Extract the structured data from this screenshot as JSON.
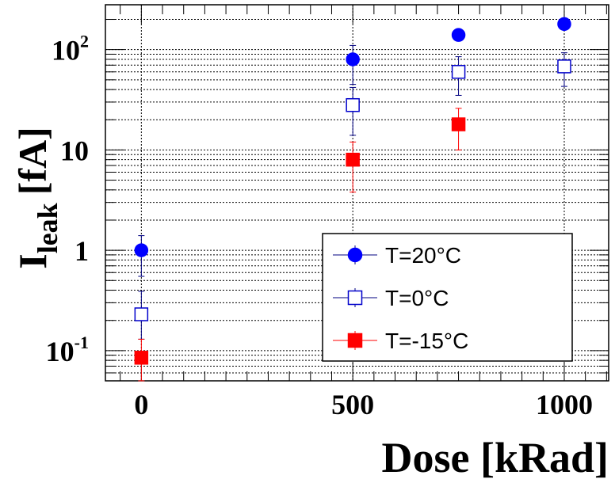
{
  "chart_data": {
    "type": "scatter",
    "title": "",
    "xlabel": "Dose [kRad]",
    "ylabel_main": "I",
    "ylabel_sub": "leak",
    "ylabel_unit": "[fA]",
    "xlim": [
      -85,
      1105
    ],
    "ylim": [
      0.05,
      280
    ],
    "yscale": "log",
    "grid": true,
    "legend_position": "bottom-right",
    "x_ticks": [
      {
        "value": 0,
        "label": "0"
      },
      {
        "value": 500,
        "label": "500"
      },
      {
        "value": 1000,
        "label": "1000"
      }
    ],
    "y_ticks": [
      {
        "value": 0.1,
        "base": "10",
        "exp": "-1"
      },
      {
        "value": 1,
        "base": "1",
        "exp": ""
      },
      {
        "value": 10,
        "base": "10",
        "exp": ""
      },
      {
        "value": 100,
        "base": "10",
        "exp": "2"
      }
    ],
    "series": [
      {
        "name": "T=20°C",
        "marker": "circle",
        "filled": true,
        "color": "#0000ff",
        "bar_color": "#000080",
        "points": [
          {
            "x": 0,
            "y": 1.0,
            "lo": 0.55,
            "hi": 1.4
          },
          {
            "x": 500,
            "y": 80,
            "lo": 45,
            "hi": 110
          },
          {
            "x": 750,
            "y": 140,
            "lo": 140,
            "hi": 140
          },
          {
            "x": 1000,
            "y": 180,
            "lo": 180,
            "hi": 180
          }
        ]
      },
      {
        "name": "T=0°C",
        "marker": "square",
        "filled": false,
        "color": "#0000cc",
        "bar_color": "#000080",
        "points": [
          {
            "x": 0,
            "y": 0.23,
            "lo": 0.13,
            "hi": 0.39
          },
          {
            "x": 500,
            "y": 28,
            "lo": 14,
            "hi": 42
          },
          {
            "x": 750,
            "y": 60,
            "lo": 35,
            "hi": 85
          },
          {
            "x": 1000,
            "y": 68,
            "lo": 43,
            "hi": 93
          }
        ]
      },
      {
        "name": "T=-15°C",
        "marker": "square",
        "filled": true,
        "color": "#ff0000",
        "bar_color": "#ff0000",
        "points": [
          {
            "x": 0,
            "y": 0.085,
            "lo": 0.05,
            "hi": 0.13
          },
          {
            "x": 500,
            "y": 8,
            "lo": 3.8,
            "hi": 12
          },
          {
            "x": 750,
            "y": 18,
            "lo": 10,
            "hi": 26
          }
        ]
      }
    ]
  }
}
